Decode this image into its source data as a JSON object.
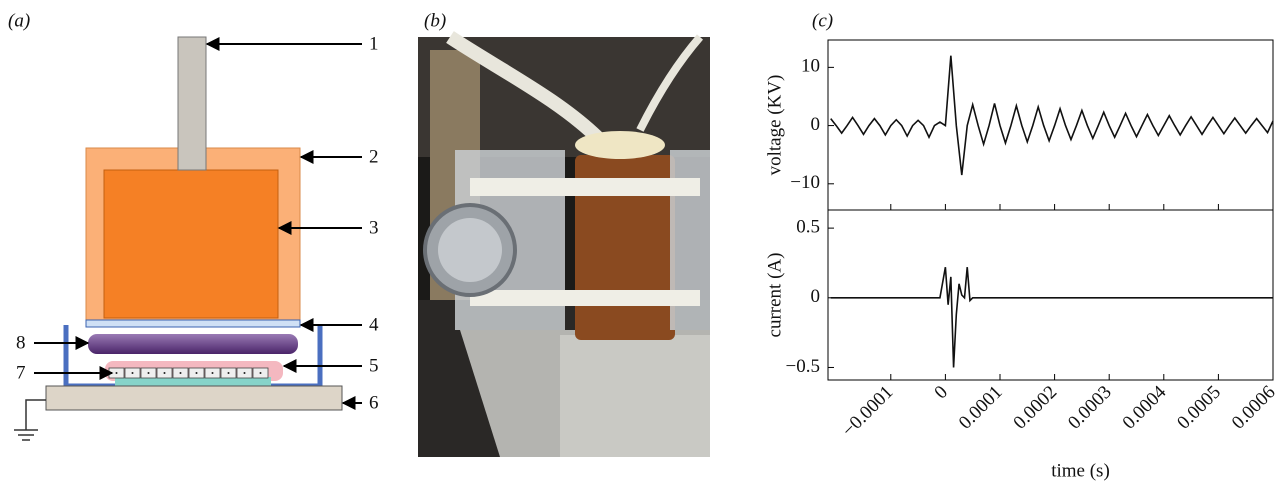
{
  "panels": {
    "a": {
      "label": "(a)",
      "callouts": [
        "1",
        "2",
        "3",
        "4",
        "5",
        "6",
        "7",
        "8"
      ]
    },
    "b": {
      "label": "(b)"
    },
    "c": {
      "label": "(c)"
    }
  },
  "chart_data": [
    {
      "type": "line",
      "ylabel": "voltage (KV)",
      "color": "#111111",
      "x": [
        -0.00021,
        -0.0002,
        -0.00019,
        -0.00018,
        -0.00017,
        -0.00016,
        -0.00015,
        -0.00014,
        -0.00013,
        -0.00012,
        -0.00011,
        -0.0001,
        -9e-05,
        -8e-05,
        -7e-05,
        -6e-05,
        -5e-05,
        -4e-05,
        -3e-05,
        -2e-05,
        -1e-05,
        0,
        1e-05,
        2e-05,
        3e-05,
        4e-05,
        5e-05,
        6e-05,
        7e-05,
        8e-05,
        9e-05,
        0.0001,
        0.00011,
        0.00012,
        0.00013,
        0.00014,
        0.00015,
        0.00016,
        0.00017,
        0.00018,
        0.00019,
        0.0002,
        0.00021,
        0.00022,
        0.00023,
        0.00024,
        0.00025,
        0.00026,
        0.00027,
        0.00028,
        0.00029,
        0.0003,
        0.00031,
        0.00032,
        0.00033,
        0.00034,
        0.00035,
        0.00036,
        0.00037,
        0.00038,
        0.00039,
        0.0004,
        0.00041,
        0.00042,
        0.00043,
        0.00044,
        0.00045,
        0.00046,
        0.00047,
        0.00048,
        0.00049,
        0.0005,
        0.00051,
        0.00052,
        0.00053,
        0.00054,
        0.00055,
        0.00056,
        0.00057,
        0.00058,
        0.00059,
        0.0006
      ],
      "values": [
        1.2,
        0,
        -1.3,
        0,
        1.4,
        0,
        -1.5,
        0,
        1.2,
        0,
        -1.6,
        0,
        1.0,
        0,
        -1.8,
        0,
        0.9,
        0,
        -2,
        0,
        0.6,
        0,
        12,
        0,
        -8.5,
        0,
        3.6,
        0,
        -3.2,
        0,
        3.8,
        0,
        -3,
        0,
        3.4,
        0,
        -2.8,
        0,
        3.2,
        0,
        -2.6,
        0,
        2.9,
        0,
        -2.4,
        0,
        2.6,
        0,
        -2.2,
        0,
        2.3,
        0,
        -2,
        0,
        2.1,
        0,
        -1.9,
        0,
        1.9,
        0,
        -1.7,
        0,
        1.7,
        0,
        -1.6,
        0,
        1.5,
        0,
        -1.5,
        0,
        1.4,
        0,
        -1.4,
        0,
        1.3,
        0,
        -1.3,
        0,
        1.2,
        0,
        -1.2,
        0.8
      ],
      "xlim": [
        -0.000215,
        0.0006
      ],
      "ylim": [
        -14.5,
        14.7
      ],
      "yticks": [
        {
          "value": -10,
          "label": "−10"
        },
        0,
        10
      ]
    },
    {
      "type": "line",
      "ylabel": "current (A)",
      "xlabel": "time (s)",
      "color": "#111111",
      "x": [
        -0.00021,
        -1e-05,
        0,
        5e-06,
        1e-05,
        1.5e-05,
        2e-05,
        2.5e-05,
        3e-05,
        3.5e-05,
        4e-05,
        4.5e-05,
        5e-05,
        0.0006
      ],
      "values": [
        0,
        0,
        0.22,
        -0.05,
        0.15,
        -0.5,
        -0.12,
        0.1,
        0.02,
        0,
        0.22,
        -0.02,
        0,
        0
      ],
      "xlim": [
        -0.000215,
        0.0006
      ],
      "ylim": [
        -0.59,
        0.63
      ],
      "yticks": [
        {
          "value": -0.5,
          "label": "−0.5"
        },
        0,
        0.5
      ],
      "xticks": [
        {
          "value": -0.0001,
          "label": "−0.0001"
        },
        0,
        0.0001,
        0.0002,
        0.0003,
        0.0004,
        0.0005,
        0.0006
      ]
    }
  ]
}
